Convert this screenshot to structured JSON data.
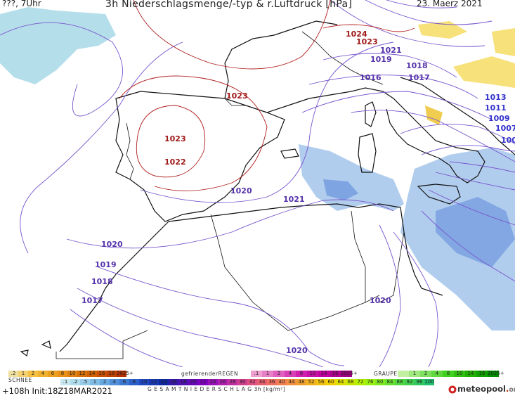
{
  "header": {
    "left": "???, 7Uhr",
    "title": "3h Niederschlagsmenge/-typ & r.Luftdruck [hPa]",
    "date": "23. Maerz 2021"
  },
  "pressure_labels": {
    "h1024": "1024",
    "h1023a": "1023",
    "h1021a": "1021",
    "h1019a": "1019",
    "h1018": "1018",
    "h1017a": "1017",
    "h1016": "1016",
    "h1013": "1013",
    "h1011": "1011",
    "h1009": "1009",
    "h1007": "1007",
    "h100x": "100",
    "h1023b": "1023",
    "h1023c": "1023",
    "h1022": "1022",
    "h1020a": "1020",
    "h1021b": "1021",
    "h1020b": "1020",
    "h1019b": "1019",
    "h1018b": "1018",
    "h1017b": "1017",
    "h1020c": "1020",
    "h1020d": "1020"
  },
  "legend": {
    "snow_caption": "SCHNEE",
    "freezing_caption": "gefrierenderREGEN",
    "graupel_caption": "GRAUPEL",
    "total_caption": "G E S A M T N I E D E R S C H L A G   3h   [kg/m²]",
    "rain_scale": {
      "labels": [
        ".2",
        "1",
        "2",
        "4",
        "6",
        "8",
        "10",
        "12",
        "14",
        "16",
        "18",
        "2025+"
      ],
      "colors": [
        "#f0e0a0",
        "#f5d070",
        "#f5c040",
        "#f0b030",
        "#eca020",
        "#e89018",
        "#e08010",
        "#d87008",
        "#d06000",
        "#c85000",
        "#c04000",
        "#b83000"
      ]
    },
    "freezing_scale": {
      "labels": [
        ".1",
        "1",
        "2",
        "4",
        "8",
        "10",
        "14",
        "16",
        "2025+"
      ],
      "colors": [
        "#f0a0d0",
        "#e880c8",
        "#e060c0",
        "#d840b8",
        "#d020b0",
        "#c810a8",
        "#c000a0",
        "#b00090",
        "#a00080"
      ]
    },
    "graupel_scale": {
      "labels": [
        "",
        "1",
        "2",
        "4",
        "8",
        "10",
        "14",
        "16",
        "2025+"
      ],
      "colors": [
        "#c0f0a0",
        "#a0e880",
        "#80e060",
        "#60d840",
        "#40d020",
        "#30c010",
        "#20b000",
        "#10a000",
        "#009000"
      ]
    },
    "total_scale": {
      "labels": [
        ".1",
        ".2",
        ".5",
        "1",
        "2",
        "4",
        "6",
        "8",
        "10",
        "12",
        "14",
        "16",
        "18",
        "20",
        "22",
        "24",
        "26",
        "28",
        "30",
        "32",
        "34",
        "36",
        "40",
        "44",
        "48",
        "52",
        "56",
        "60",
        "64",
        "68",
        "72",
        "76",
        "80",
        "84",
        "88",
        "92",
        "96",
        "100"
      ],
      "colors": [
        "#c8e8f0",
        "#b0dcec",
        "#98cce8",
        "#80bce4",
        "#68a8e0",
        "#5090d8",
        "#3c78d0",
        "#2c60c8",
        "#2048c0",
        "#1838b0",
        "#1028a0",
        "#3818a8",
        "#5010b0",
        "#6808b8",
        "#8000c0",
        "#9810b8",
        "#b020b0",
        "#c030a0",
        "#d04090",
        "#e05080",
        "#e86070",
        "#f07060",
        "#f08050",
        "#f09040",
        "#f0a030",
        "#f0b020",
        "#f0c010",
        "#f0d000",
        "#e0e000",
        "#c8e800",
        "#b0f000",
        "#98f010",
        "#80e820",
        "#68e030",
        "#50d840",
        "#40d050",
        "#30c860",
        "#20c070"
      ]
    }
  },
  "footer": {
    "forecast": "+108h Init:18Z18MAR2021",
    "brand": "meteopool",
    "brand_dot": ".",
    "brand_tld": "org"
  }
}
